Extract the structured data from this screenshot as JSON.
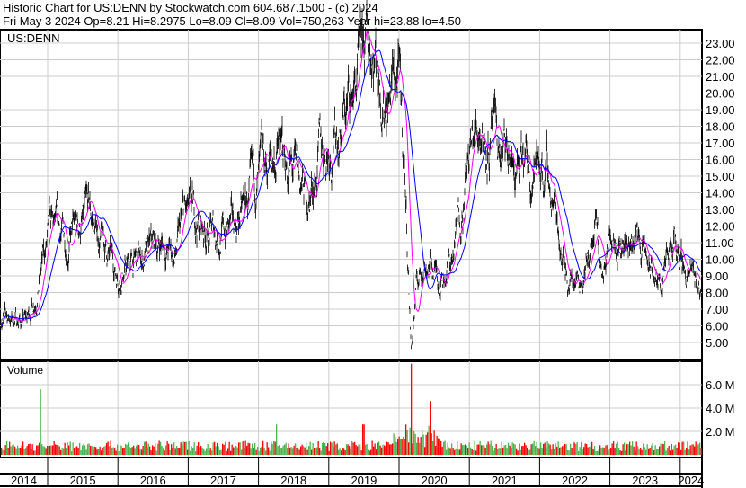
{
  "header": {
    "title": "Historic Chart for US:DENN by Stockwatch.com 604.687.1500 - (c) 2024",
    "quote": "Fri May  3 2024  Op=8.21  Hi=8.2975  Lo=8.09  Cl=8.09  Vol=750,263  Year hi=23.88  lo=4.50"
  },
  "chart_data": [
    {
      "type": "line",
      "symbol_label": "US:DENN",
      "y_ticks": [
        "5.00",
        "6.00",
        "7.00",
        "8.00",
        "9.00",
        "10.00",
        "11.00",
        "12.00",
        "13.00",
        "14.00",
        "15.00",
        "16.00",
        "17.00",
        "18.00",
        "19.00",
        "20.00",
        "21.00",
        "22.00",
        "23.00"
      ],
      "ylim": [
        4.4,
        24.3
      ],
      "x_tick_labels": [
        "2014",
        "2015",
        "2016",
        "2017",
        "2018",
        "2019",
        "2020",
        "2021",
        "2022",
        "2023",
        "2024"
      ],
      "xlim": [
        2014.32,
        2024.34
      ],
      "grid": true,
      "colors": {
        "price": "#000000",
        "ma_short": "#ff00ff",
        "ma_long": "#0000ff",
        "up": "#ff0000"
      },
      "price_anchors": [
        [
          2014.32,
          6.6
        ],
        [
          2014.71,
          6.3
        ],
        [
          2014.83,
          8
        ],
        [
          2015.03,
          11.5
        ],
        [
          2015.28,
          11.2
        ],
        [
          2015.6,
          12.5
        ],
        [
          2015.98,
          9.2
        ],
        [
          2016.37,
          10
        ],
        [
          2016.62,
          11
        ],
        [
          2016.82,
          10
        ],
        [
          2016.94,
          12.5
        ],
        [
          2017.39,
          11.5
        ],
        [
          2017.65,
          11.8
        ],
        [
          2018.16,
          15.5
        ],
        [
          2018.29,
          16.5
        ],
        [
          2018.73,
          13.5
        ],
        [
          2018.86,
          16
        ],
        [
          2019.18,
          18
        ],
        [
          2019.44,
          21
        ],
        [
          2019.63,
          23.5
        ],
        [
          2019.82,
          20
        ],
        [
          2020.01,
          21
        ],
        [
          2020.1,
          15
        ],
        [
          2020.19,
          4.6
        ],
        [
          2020.27,
          8.5
        ],
        [
          2020.4,
          10
        ],
        [
          2020.59,
          9
        ],
        [
          2020.78,
          10
        ],
        [
          2020.97,
          15
        ],
        [
          2021.16,
          18.5
        ],
        [
          2021.48,
          16
        ],
        [
          2021.74,
          15
        ],
        [
          2022.06,
          16
        ],
        [
          2022.25,
          13
        ],
        [
          2022.44,
          8.7
        ],
        [
          2022.7,
          9.7
        ],
        [
          2022.83,
          11.5
        ],
        [
          2022.92,
          8.7
        ],
        [
          2023.08,
          12.5
        ],
        [
          2023.27,
          11
        ],
        [
          2023.43,
          11.5
        ],
        [
          2023.53,
          10
        ],
        [
          2023.72,
          8.3
        ],
        [
          2023.98,
          10.8
        ],
        [
          2024.1,
          9.5
        ],
        [
          2024.31,
          8.1
        ]
      ]
    },
    {
      "type": "bar",
      "title": "Volume",
      "y_ticks": [
        "2.0 M",
        "4.0 M",
        "6.0 M"
      ],
      "ylim": [
        0,
        7.8
      ],
      "colors": {
        "up": "#4db34d",
        "down": "#ff0000"
      },
      "peaks": [
        [
          2014.9,
          5.6
        ],
        [
          2020.19,
          7.8
        ],
        [
          2020.45,
          4.6
        ],
        [
          2018.25,
          2.6
        ],
        [
          2019.5,
          2.6
        ]
      ]
    }
  ]
}
